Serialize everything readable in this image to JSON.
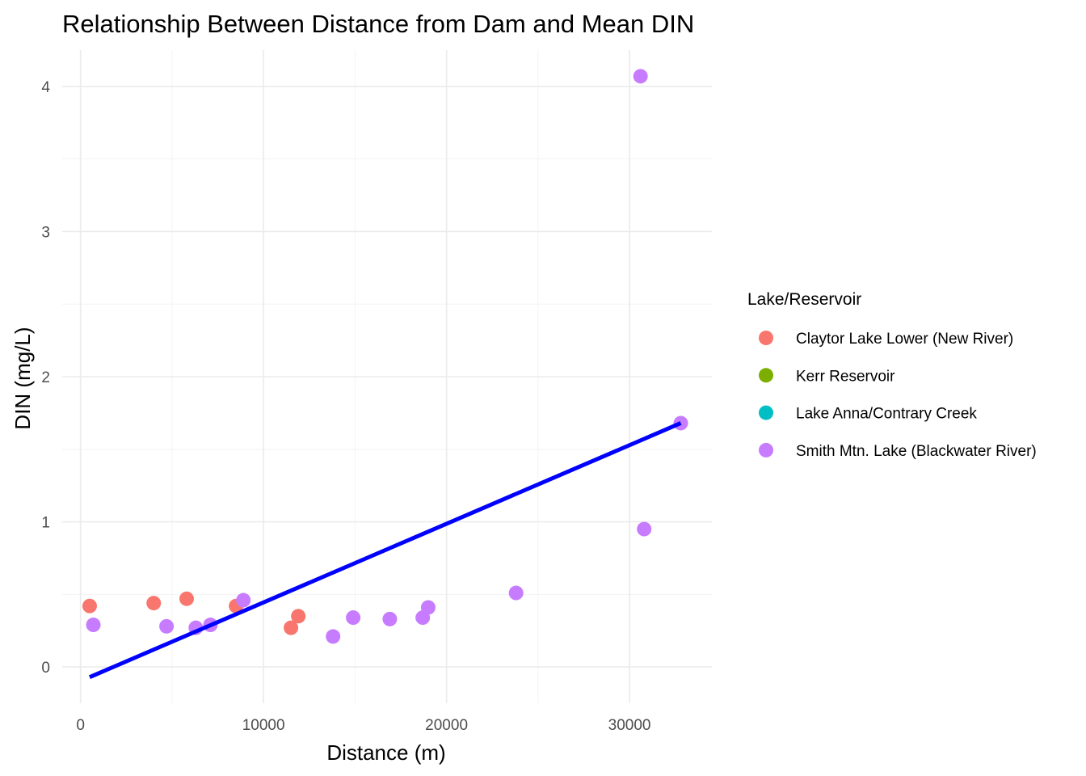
{
  "chart_data": {
    "type": "scatter",
    "title": "Relationship Between Distance from Dam and Mean DIN",
    "xlabel": "Distance (m)",
    "ylabel": "DIN (mg/L)",
    "xlim": [
      -1000,
      34500
    ],
    "ylim": [
      -0.25,
      4.25
    ],
    "x_ticks": [
      0,
      10000,
      20000,
      30000
    ],
    "x_tick_labels": [
      "0",
      "10000",
      "20000",
      "30000"
    ],
    "y_ticks": [
      0,
      1,
      2,
      3,
      4
    ],
    "y_tick_labels": [
      "0",
      "1",
      "2",
      "3",
      "4"
    ],
    "grid": true,
    "legend": {
      "title": "Lake/Reservoir",
      "position": "right",
      "entries": [
        {
          "label": "Claytor Lake Lower (New River)",
          "color": "#F8766D"
        },
        {
          "label": "Kerr Reservoir",
          "color": "#7CAE00"
        },
        {
          "label": "Lake Anna/Contrary Creek",
          "color": "#00BFC4"
        },
        {
          "label": "Smith Mtn. Lake (Blackwater River)",
          "color": "#C77CFF"
        }
      ]
    },
    "series": [
      {
        "name": "Claytor Lake Lower (New River)",
        "color": "#F8766D",
        "points": [
          {
            "x": 500,
            "y": 0.42
          },
          {
            "x": 4000,
            "y": 0.44
          },
          {
            "x": 5800,
            "y": 0.47
          },
          {
            "x": 8500,
            "y": 0.42
          },
          {
            "x": 11500,
            "y": 0.27
          },
          {
            "x": 11900,
            "y": 0.35
          }
        ]
      },
      {
        "name": "Kerr Reservoir",
        "color": "#7CAE00",
        "points": []
      },
      {
        "name": "Lake Anna/Contrary Creek",
        "color": "#00BFC4",
        "points": []
      },
      {
        "name": "Smith Mtn. Lake (Blackwater River)",
        "color": "#C77CFF",
        "points": [
          {
            "x": 700,
            "y": 0.29
          },
          {
            "x": 4700,
            "y": 0.28
          },
          {
            "x": 6300,
            "y": 0.27
          },
          {
            "x": 7100,
            "y": 0.29
          },
          {
            "x": 8900,
            "y": 0.46
          },
          {
            "x": 13800,
            "y": 0.21
          },
          {
            "x": 14900,
            "y": 0.34
          },
          {
            "x": 16900,
            "y": 0.33
          },
          {
            "x": 18700,
            "y": 0.34
          },
          {
            "x": 19000,
            "y": 0.41
          },
          {
            "x": 23800,
            "y": 0.51
          },
          {
            "x": 30600,
            "y": 4.07
          },
          {
            "x": 30800,
            "y": 0.95
          },
          {
            "x": 32800,
            "y": 1.68
          }
        ]
      }
    ],
    "trendline": {
      "type": "linear",
      "color": "#0000FF",
      "x": [
        500,
        32800
      ],
      "y": [
        -0.07,
        1.68
      ]
    }
  }
}
